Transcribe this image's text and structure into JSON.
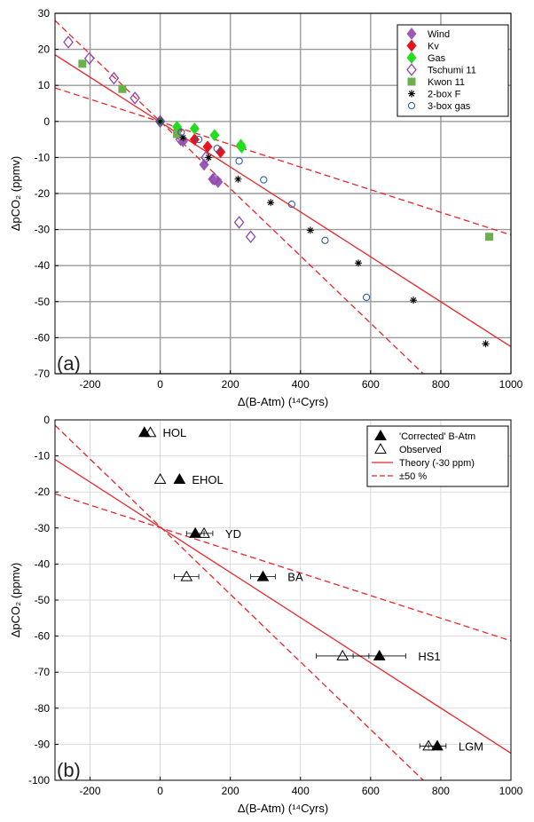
{
  "chart_data": [
    {
      "type": "scatter",
      "panel_label": "(a)",
      "xlabel": "Δ(B-Atm) (¹⁴Cyrs)",
      "ylabel": "ΔpCO₂ (ppmv)",
      "xlim": [
        -300,
        1000
      ],
      "ylim": [
        -70,
        30
      ],
      "xticks": [
        -200,
        0,
        200,
        400,
        600,
        800,
        1000
      ],
      "yticks": [
        30,
        20,
        10,
        0,
        -10,
        -20,
        -30,
        -40,
        -50,
        -60,
        -70
      ],
      "grid": true,
      "legend_position": "top-right",
      "lines": [
        {
          "style": "solid",
          "color": "#e8262b",
          "points": [
            [
              -300,
              18.5
            ],
            [
              1000,
              -62.5
            ]
          ]
        },
        {
          "style": "dashed",
          "color": "#e8262b",
          "points": [
            [
              -300,
              28
            ],
            [
              750,
              -70
            ]
          ]
        },
        {
          "style": "dashed",
          "color": "#e8262b",
          "points": [
            [
              -300,
              9.3
            ],
            [
              1000,
              -31.5
            ]
          ]
        }
      ],
      "series": [
        {
          "name": "Wind",
          "marker": "diamond",
          "filled": true,
          "color": "#9b59b6",
          "points": [
            [
              0,
              0
            ],
            [
              65,
              -5.5
            ],
            [
              125,
              -12
            ],
            [
              150,
              -16
            ],
            [
              165,
              -16.8
            ]
          ]
        },
        {
          "name": "Kv",
          "marker": "diamond",
          "filled": true,
          "color": "#e8131a",
          "points": [
            [
              0,
              0
            ],
            [
              50,
              -2.5
            ],
            [
              98,
              -5
            ],
            [
              135,
              -7
            ],
            [
              172,
              -8.5
            ]
          ]
        },
        {
          "name": "Gas",
          "marker": "diamond",
          "filled": true,
          "color": "#22dd22",
          "points": [
            [
              0,
              0
            ],
            [
              48,
              -1.5
            ],
            [
              98,
              -2
            ],
            [
              155,
              -3.8
            ],
            [
              230,
              -6.5
            ],
            [
              232,
              -7.2
            ]
          ]
        },
        {
          "name": "Tschumi 11",
          "marker": "diamond",
          "filled": false,
          "color": "#8e44ad",
          "points": [
            [
              -262,
              22
            ],
            [
              -202,
              17.5
            ],
            [
              -132,
              12
            ],
            [
              -72,
              6.5
            ],
            [
              0,
              0
            ],
            [
              58,
              -5
            ],
            [
              130,
              -10
            ],
            [
              155,
              -16
            ],
            [
              225,
              -28
            ],
            [
              258,
              -32
            ]
          ]
        },
        {
          "name": "Kwon 11",
          "marker": "square",
          "filled": true,
          "color": "#6ab04c",
          "points": [
            [
              -222,
              16
            ],
            [
              -108,
              9
            ],
            [
              48,
              -3.5
            ],
            [
              938,
              -32
            ]
          ]
        },
        {
          "name": "2-box F",
          "marker": "asterisk",
          "filled": false,
          "color": "#000000",
          "points": [
            [
              0,
              0
            ],
            [
              65,
              -4.5
            ],
            [
              138,
              -10
            ],
            [
              222,
              -16
            ],
            [
              315,
              -22.5
            ],
            [
              428,
              -30.2
            ],
            [
              565,
              -39.3
            ],
            [
              722,
              -49.6
            ],
            [
              928,
              -61.7
            ]
          ]
        },
        {
          "name": "3-box gas",
          "marker": "circle",
          "filled": false,
          "color": "#2f5fa8",
          "points": [
            [
              0,
              0
            ],
            [
              60,
              -3
            ],
            [
              110,
              -5
            ],
            [
              162,
              -7.5
            ],
            [
              225,
              -11
            ],
            [
              295,
              -16.2
            ],
            [
              375,
              -23
            ],
            [
              470,
              -33
            ],
            [
              588,
              -48.8
            ]
          ]
        }
      ]
    },
    {
      "type": "scatter",
      "panel_label": "(b)",
      "xlabel": "Δ(B-Atm) (¹⁴Cyrs)",
      "ylabel": "ΔpCO₂ (ppmv)",
      "xlim": [
        -300,
        1000
      ],
      "ylim": [
        -100,
        0
      ],
      "xticks": [
        -200,
        0,
        200,
        400,
        600,
        800,
        1000
      ],
      "yticks": [
        0,
        -10,
        -20,
        -30,
        -40,
        -50,
        -60,
        -70,
        -80,
        -90,
        -100
      ],
      "grid": true,
      "legend_position": "top-right",
      "legend": [
        {
          "label": "'Corrected' B-Atm",
          "kind": "filled-triangle"
        },
        {
          "label": "Observed",
          "kind": "open-triangle"
        },
        {
          "label": "Theory (-30 ppm)",
          "kind": "solid-line"
        },
        {
          "label": "±50 %",
          "kind": "dashed-line"
        }
      ],
      "lines": [
        {
          "style": "solid",
          "color": "#e8262b",
          "points": [
            [
              -300,
              -11
            ],
            [
              1000,
              -92.5
            ]
          ]
        },
        {
          "style": "dashed",
          "color": "#e8262b",
          "points": [
            [
              -300,
              -1.5
            ],
            [
              750,
              -100
            ]
          ]
        },
        {
          "style": "dashed",
          "color": "#e8262b",
          "points": [
            [
              -300,
              -20.5
            ],
            [
              1000,
              -61.3
            ]
          ]
        }
      ],
      "events": [
        {
          "label": "HOL",
          "corrected": [
            -45,
            -3.5
          ],
          "observed": [
            -28,
            -3.5
          ],
          "xerr": 0
        },
        {
          "label": "EHOL",
          "corrected": [
            55,
            -16.5
          ],
          "observed": [
            0,
            -16.5
          ],
          "xerr": 0
        },
        {
          "label": "YD",
          "corrected": [
            100,
            -31.5
          ],
          "observed": [
            125,
            -31.5
          ],
          "xerr": 25
        },
        {
          "label": "BA",
          "corrected": [
            293,
            -43.5
          ],
          "observed": [
            75,
            -43.5
          ],
          "xerr": 35
        },
        {
          "label": "HS1",
          "corrected": [
            625,
            -65.5
          ],
          "observed": [
            520,
            -65.5
          ],
          "xerr": 75
        },
        {
          "label": "LGM",
          "corrected": [
            790,
            -90.5
          ],
          "observed": [
            765,
            -90.5
          ],
          "xerr": 25
        }
      ]
    }
  ]
}
